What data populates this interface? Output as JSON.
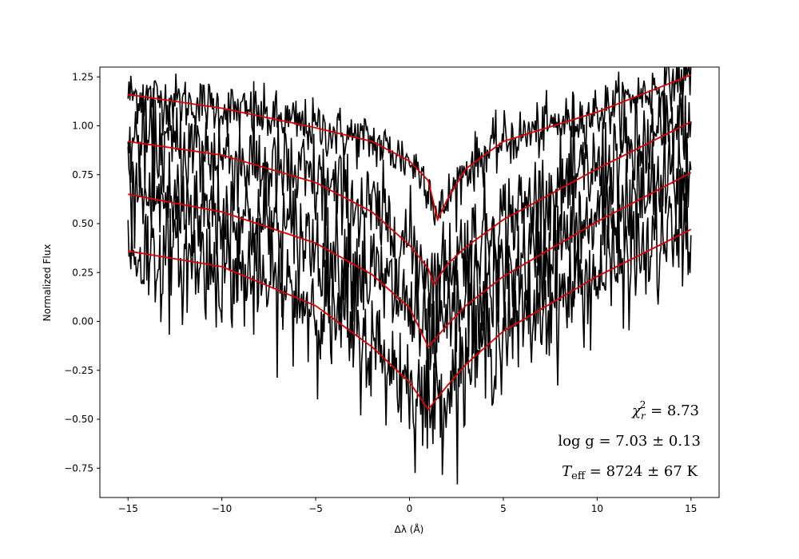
{
  "chart_data": {
    "type": "line",
    "xlabel": "Δλ (Å)",
    "ylabel": "Normalized Flux",
    "xlim": [
      -16.5,
      16.5
    ],
    "ylim": [
      -0.9,
      1.3
    ],
    "xticks": [
      -15,
      -10,
      -5,
      0,
      5,
      10,
      15
    ],
    "xtick_labels": [
      "−15",
      "−10",
      "−5",
      "0",
      "5",
      "10",
      "15"
    ],
    "yticks": [
      -0.75,
      -0.5,
      -0.25,
      0.0,
      0.25,
      0.5,
      0.75,
      1.0,
      1.25
    ],
    "ytick_labels": [
      "−0.75",
      "−0.50",
      "−0.25",
      "0.00",
      "0.25",
      "0.50",
      "0.75",
      "1.00",
      "1.25"
    ],
    "grid": false,
    "colors": {
      "observed": "#000000",
      "model": "#dd0000"
    },
    "series": [
      {
        "observed": {
          "x": [
            -15,
            -10,
            -5,
            -2,
            0,
            1,
            1.5,
            2,
            3,
            5,
            10,
            15
          ],
          "y": [
            1.16,
            1.09,
            0.99,
            0.92,
            0.82,
            0.72,
            0.52,
            0.62,
            0.78,
            0.92,
            1.07,
            1.26
          ],
          "noise": 0.07
        },
        "model": {
          "x": [
            -15,
            -10,
            -5,
            -2,
            0,
            1,
            1.5,
            2,
            3,
            5,
            10,
            15
          ],
          "y": [
            1.16,
            1.09,
            0.99,
            0.92,
            0.82,
            0.72,
            0.52,
            0.62,
            0.78,
            0.92,
            1.07,
            1.26
          ]
        }
      },
      {
        "observed": {
          "x": [
            -15,
            -10,
            -5,
            -2,
            0,
            1,
            1.3,
            2,
            3,
            5,
            10,
            15
          ],
          "y": [
            0.92,
            0.85,
            0.71,
            0.56,
            0.39,
            0.27,
            0.19,
            0.29,
            0.38,
            0.52,
            0.78,
            1.02
          ],
          "noise": 0.13
        },
        "model": {
          "x": [
            -15,
            -10,
            -5,
            -2,
            0,
            1,
            1.3,
            2,
            3,
            5,
            10,
            15
          ],
          "y": [
            0.92,
            0.85,
            0.71,
            0.56,
            0.39,
            0.27,
            0.19,
            0.29,
            0.38,
            0.52,
            0.78,
            1.02
          ]
        }
      },
      {
        "observed": {
          "x": [
            -15,
            -10,
            -5,
            -2,
            0,
            1,
            2,
            3,
            5,
            10,
            15
          ],
          "y": [
            0.65,
            0.56,
            0.4,
            0.24,
            0.07,
            -0.13,
            -0.02,
            0.08,
            0.23,
            0.51,
            0.76
          ],
          "noise": 0.15
        },
        "model": {
          "x": [
            -15,
            -10,
            -5,
            -2,
            0,
            1,
            2,
            3,
            5,
            10,
            15
          ],
          "y": [
            0.65,
            0.56,
            0.4,
            0.24,
            0.07,
            -0.13,
            -0.02,
            0.08,
            0.23,
            0.51,
            0.76
          ]
        }
      },
      {
        "observed": {
          "x": [
            -15,
            -10,
            -5,
            -2,
            0,
            1,
            2,
            3,
            5,
            10,
            15
          ],
          "y": [
            0.36,
            0.28,
            0.08,
            -0.13,
            -0.31,
            -0.45,
            -0.33,
            -0.22,
            -0.05,
            0.23,
            0.47
          ],
          "noise": 0.15
        },
        "model": {
          "x": [
            -15,
            -10,
            -5,
            -2,
            0,
            1,
            2,
            3,
            5,
            10,
            15
          ],
          "y": [
            0.36,
            0.28,
            0.08,
            -0.13,
            -0.31,
            -0.45,
            -0.33,
            -0.22,
            -0.05,
            0.23,
            0.47
          ]
        }
      }
    ],
    "annotations": {
      "chi2_label": "χ",
      "chi2_sub": "r",
      "chi2_sup": "2",
      "chi2_value": " = 8.73",
      "logg": "log g = 7.03 ± 0.13",
      "teff_symbol": "T",
      "teff_sub": "eff",
      "teff_value": " = 8724 ± 67 K"
    }
  }
}
